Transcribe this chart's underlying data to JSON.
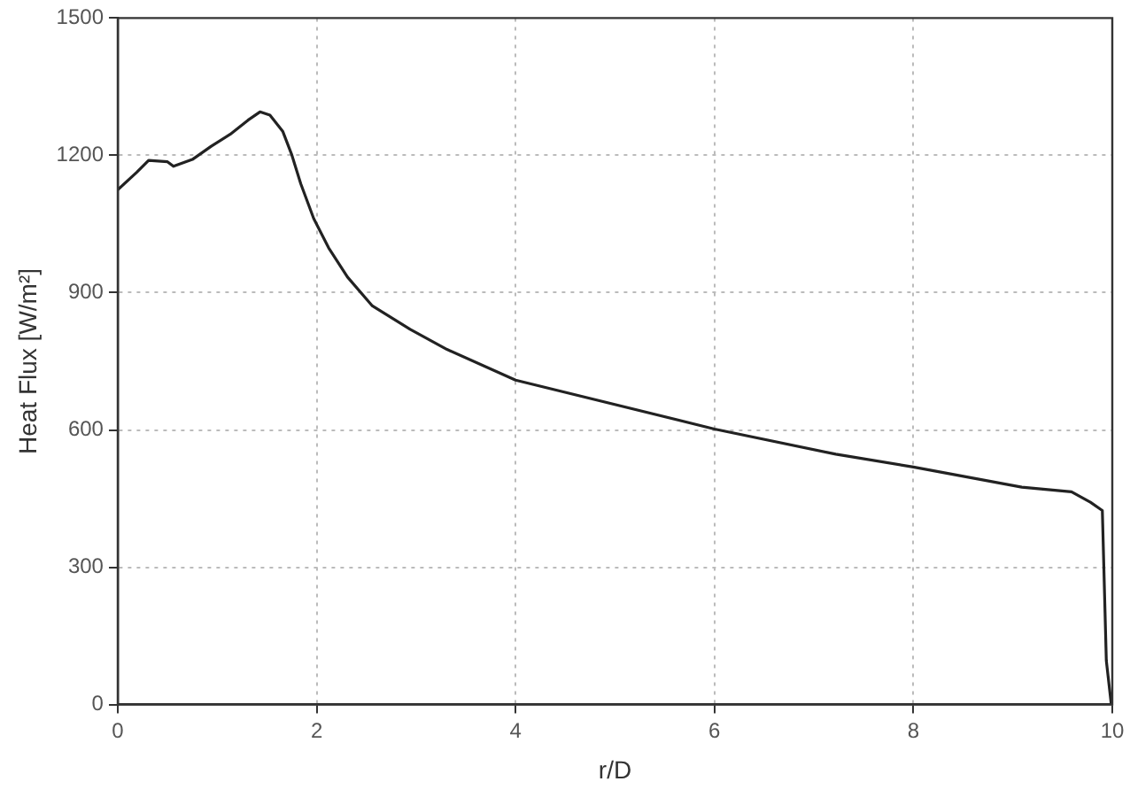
{
  "chart_data": {
    "type": "line",
    "xlabel": "r/D",
    "ylabel": "Heat Flux [W/m²]",
    "xlim": [
      0,
      10
    ],
    "xticks": [
      0,
      2,
      4,
      6,
      8,
      10
    ],
    "ylim": [
      0,
      1500
    ],
    "yticks": [
      0,
      300,
      600,
      900,
      1200,
      1500
    ],
    "grid": true,
    "legend": false,
    "marker": "none",
    "line_style": "solid",
    "series": [
      {
        "color": "#222222",
        "x": [
          0,
          0.19,
          0.31,
          0.5,
          0.56,
          0.75,
          0.94,
          1.13,
          1.31,
          1.43,
          1.53,
          1.66,
          1.75,
          1.84,
          1.97,
          2.12,
          2.31,
          2.56,
          2.94,
          3.31,
          4,
          6,
          7.22,
          8,
          9.09,
          9.59,
          9.78,
          9.9,
          9.94,
          9.99
        ],
        "values": [
          1125,
          1163,
          1189,
          1186,
          1176,
          1191,
          1220,
          1246,
          1277,
          1295,
          1288,
          1252,
          1201,
          1138,
          1062,
          998,
          934,
          871,
          820,
          776,
          709,
          602,
          547,
          519,
          475,
          465,
          442,
          424,
          96,
          0
        ]
      }
    ]
  }
}
